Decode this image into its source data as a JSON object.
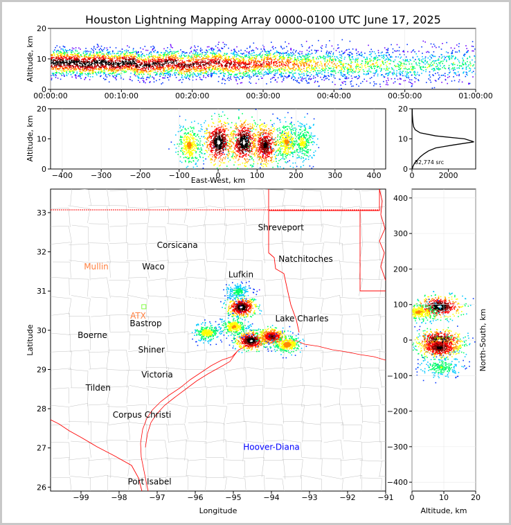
{
  "title": "Houston Lightning Mapping Array 0000-0100 UTC June 17, 2025",
  "colors": {
    "source_ramp": [
      "#6a00ff",
      "#0033ff",
      "#00c8ff",
      "#00ff66",
      "#ffff00",
      "#ff8800",
      "#ff0000",
      "#880000",
      "#000000",
      "#ffffff"
    ],
    "county_lines": "#c0c0c0",
    "state_lines": "#ff0000",
    "station_label_inactive": "#ff8040",
    "station_label_special": "#0000ff",
    "histogram_line": "#000000"
  },
  "chart_data": [
    {
      "id": "time-height",
      "type": "scatter",
      "xlabel": "",
      "ylabel": "Altitude, km",
      "xlim_minutes": [
        0,
        60
      ],
      "xticks": [
        "00:00:00",
        "00:10:00",
        "00:20:00",
        "00:30:00",
        "00:40:00",
        "00:50:00",
        "01:00:00"
      ],
      "ylim": [
        0,
        20
      ],
      "yticks": [
        "0",
        "10",
        "20"
      ],
      "series": [
        {
          "time_min": [
            0,
            2,
            4,
            6,
            8,
            10,
            12,
            14,
            16,
            18,
            20,
            22,
            24,
            26,
            28,
            30,
            32,
            34,
            36,
            38,
            40,
            42,
            44,
            46,
            48,
            50,
            52,
            54,
            56,
            58,
            60
          ],
          "altitude_km": [
            9,
            9,
            8.5,
            9,
            8.5,
            9,
            8,
            8.5,
            9,
            8,
            8.5,
            9,
            8.5,
            8,
            8.5,
            9,
            8.5,
            8,
            8.5,
            8.5,
            8,
            8,
            8.5,
            8,
            8,
            7.5,
            8,
            8.5,
            9,
            8.5,
            8
          ],
          "density": [
            1.0,
            1.0,
            1.0,
            1.0,
            0.95,
            0.95,
            0.9,
            0.9,
            0.9,
            0.85,
            0.85,
            0.8,
            0.8,
            0.75,
            0.7,
            0.7,
            0.65,
            0.6,
            0.55,
            0.5,
            0.45,
            0.45,
            0.4,
            0.4,
            0.35,
            0.35,
            0.3,
            0.3,
            0.3,
            0.3,
            0.25
          ]
        }
      ]
    },
    {
      "id": "east-west-height",
      "type": "scatter",
      "xlabel": "East-West, km",
      "ylabel": "Altitude, km",
      "xlim": [
        -430,
        430
      ],
      "xticks": [
        "−400",
        "−300",
        "−200",
        "−100",
        "0",
        "100",
        "200",
        "300",
        "400"
      ],
      "ylim": [
        0,
        20
      ],
      "yticks": [
        "0",
        "10",
        "20"
      ],
      "cores": [
        {
          "ew_km": -75,
          "alt_km": 8,
          "intensity": 0.55
        },
        {
          "ew_km": 0,
          "alt_km": 9,
          "intensity": 1.0
        },
        {
          "ew_km": 65,
          "alt_km": 9,
          "intensity": 1.0
        },
        {
          "ew_km": 120,
          "alt_km": 8,
          "intensity": 0.9
        },
        {
          "ew_km": 175,
          "alt_km": 9,
          "intensity": 0.55
        },
        {
          "ew_km": 215,
          "alt_km": 9,
          "intensity": 0.45
        }
      ]
    },
    {
      "id": "altitude-histogram",
      "type": "line",
      "annotation": "82,774 src",
      "xlim": [
        0,
        3500
      ],
      "xticks": [
        "0",
        "2000"
      ],
      "ylim": [
        0,
        20
      ],
      "yticks": [
        "0",
        "10",
        "20"
      ],
      "alt_km": [
        0,
        1,
        2,
        3,
        4,
        5,
        6,
        7,
        8,
        9,
        10,
        11,
        12,
        13,
        14,
        15,
        16,
        17,
        18,
        19,
        20
      ],
      "count": [
        10,
        60,
        150,
        300,
        450,
        650,
        900,
        1300,
        2300,
        3400,
        2900,
        1300,
        450,
        180,
        90,
        60,
        40,
        30,
        20,
        15,
        10
      ]
    },
    {
      "id": "plan-view",
      "type": "scatter",
      "xlabel": "Longitude",
      "ylabel": "Latitude",
      "xlim": [
        -99.8,
        -91
      ],
      "xticks": [
        "−99",
        "−98",
        "−97",
        "−96",
        "−95",
        "−94",
        "−93",
        "−92",
        "−91"
      ],
      "ylim": [
        25.9,
        33.6
      ],
      "yticks": [
        "26",
        "27",
        "28",
        "29",
        "30",
        "31",
        "32",
        "33"
      ],
      "cities": [
        {
          "name": "Shreveport",
          "lon": -93.75,
          "lat": 32.55
        },
        {
          "name": "Corsicana",
          "lon": -96.47,
          "lat": 32.1
        },
        {
          "name": "Natchitoches",
          "lon": -93.1,
          "lat": 31.75
        },
        {
          "name": "Waco",
          "lon": -97.1,
          "lat": 31.55
        },
        {
          "name": "Lufkin",
          "lon": -94.8,
          "lat": 31.35
        },
        {
          "name": "Lake Charles",
          "lon": -93.2,
          "lat": 30.23
        },
        {
          "name": "Bastrop",
          "lon": -97.3,
          "lat": 30.1
        },
        {
          "name": "Boerne",
          "lon": -98.7,
          "lat": 29.8
        },
        {
          "name": "Shiner",
          "lon": -97.15,
          "lat": 29.43
        },
        {
          "name": "Victoria",
          "lon": -97.0,
          "lat": 28.8
        },
        {
          "name": "Tilden",
          "lon": -98.55,
          "lat": 28.46
        },
        {
          "name": "Corpus Christi",
          "lon": -97.4,
          "lat": 27.77
        },
        {
          "name": "Port Isabel",
          "lon": -97.2,
          "lat": 26.07
        }
      ],
      "stations": [
        {
          "name": "Mullin",
          "lon": -98.6,
          "lat": 31.55
        },
        {
          "name": "ATX",
          "lon": -97.5,
          "lat": 30.3
        }
      ],
      "special_labels": [
        {
          "name": "Hoover-Diana",
          "lon": -94.0,
          "lat": 26.95
        },
        {
          "name": "HOU",
          "lon": -96.15,
          "lat": 30.72
        }
      ],
      "storms": [
        {
          "lon": -94.8,
          "lat": 30.6,
          "intensity": 1.0
        },
        {
          "lon": -94.55,
          "lat": 29.75,
          "intensity": 1.0
        },
        {
          "lon": -94.0,
          "lat": 29.85,
          "intensity": 0.85
        },
        {
          "lon": -93.6,
          "lat": 29.65,
          "intensity": 0.6
        },
        {
          "lon": -95.0,
          "lat": 30.1,
          "intensity": 0.55
        },
        {
          "lon": -95.7,
          "lat": 29.95,
          "intensity": 0.5
        },
        {
          "lon": -94.9,
          "lat": 31.0,
          "intensity": 0.35
        }
      ]
    },
    {
      "id": "north-south-height",
      "type": "scatter",
      "xlabel": "Altitude, km",
      "ylabel": "North-South, km",
      "xlim": [
        0,
        20
      ],
      "xticks": [
        "0",
        "10",
        "20"
      ],
      "ylim": [
        -425,
        425
      ],
      "yticks": [
        "−400",
        "−300",
        "−200",
        "−100",
        "0",
        "100",
        "200",
        "300",
        "400"
      ],
      "cores": [
        {
          "alt_km": 8.5,
          "ns_km": 95,
          "intensity": 1.0
        },
        {
          "alt_km": 8.5,
          "ns_km": 0,
          "intensity": 1.0
        },
        {
          "alt_km": 8.5,
          "ns_km": -20,
          "intensity": 0.9
        },
        {
          "alt_km": 2,
          "ns_km": 80,
          "intensity": 0.55
        },
        {
          "alt_km": 9,
          "ns_km": -75,
          "intensity": 0.4
        }
      ]
    }
  ]
}
